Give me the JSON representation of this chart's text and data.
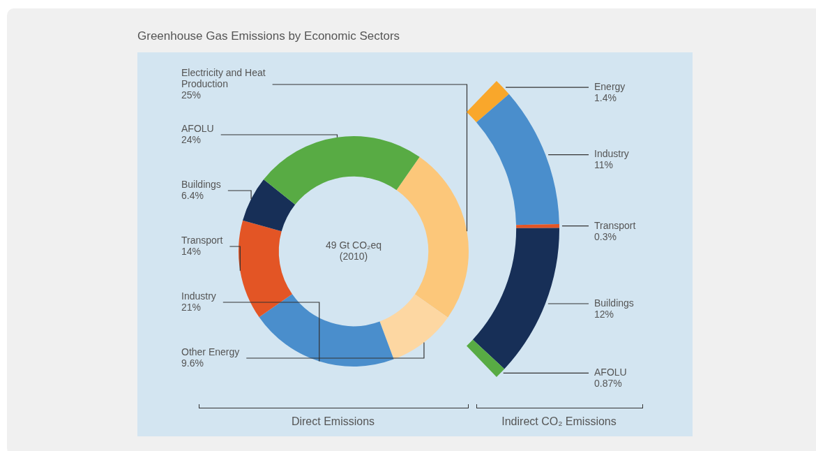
{
  "chart_data": [
    {
      "type": "donut",
      "title": "Greenhouse Gas Emissions by Economic Sectors",
      "categories": [
        "Electricity and Heat Production",
        "Other Energy",
        "Industry",
        "Transport",
        "Buildings",
        "AFOLU"
      ],
      "values": [
        25,
        9.6,
        21,
        14,
        6.4,
        24
      ],
      "value_labels": [
        "25%",
        "9.6%",
        "21%",
        "14%",
        "6.4%",
        "24%"
      ],
      "colors": [
        "#fcc77a",
        "#fdd7a2",
        "#4a8ecc",
        "#e35525",
        "#172f57",
        "#58ab44"
      ],
      "annotations": [
        "49 Gt CO₂eq",
        "(2010)",
        "Direct Emissions"
      ],
      "legend": false
    },
    {
      "type": "donut",
      "categories": [
        "Energy",
        "Industry",
        "Transport",
        "Buildings",
        "AFOLU"
      ],
      "values": [
        1.4,
        11,
        0.3,
        12,
        0.87
      ],
      "value_labels": [
        "1.4%",
        "11%",
        "0.3%",
        "12%",
        "0.87%"
      ],
      "colors": [
        "#f9a72b",
        "#4a8ecc",
        "#e35525",
        "#172f57",
        "#58ab44"
      ],
      "annotations": [
        "Indirect CO₂ Emissions"
      ],
      "legend": false
    }
  ]
}
